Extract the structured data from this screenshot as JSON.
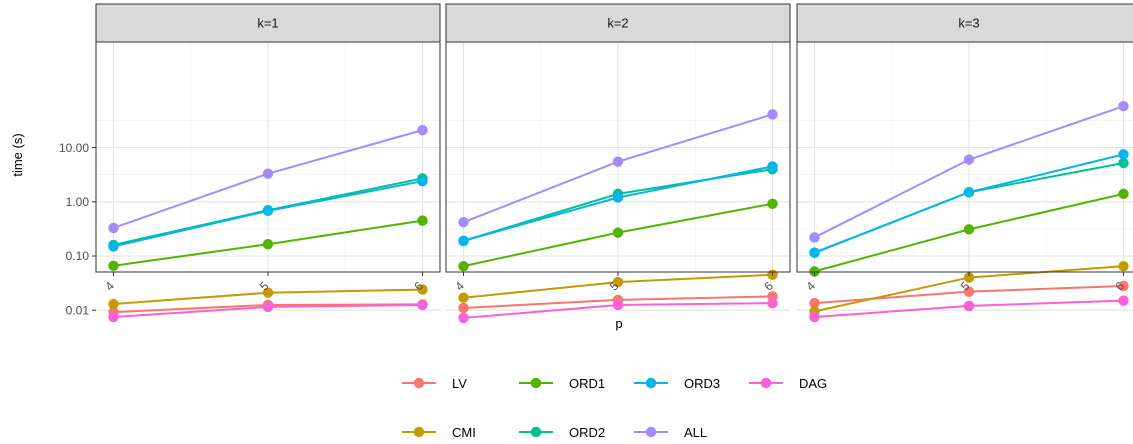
{
  "chart_data": {
    "type": "line",
    "xlabel": "p",
    "ylabel": "time (s)",
    "y_scale": "log10",
    "ylim": [
      0.005,
      80
    ],
    "yticks": [
      0.01,
      0.1,
      1,
      10
    ],
    "ytick_labels": [
      "0.01",
      "0.10",
      "1.00",
      "10.00"
    ],
    "x": [
      4,
      5,
      6
    ],
    "xtick_labels": [
      "4",
      "5",
      "6"
    ],
    "grid": true,
    "legend_position": "bottom",
    "legend_order": [
      "LV",
      "CMI",
      "ORD1",
      "ORD2",
      "ORD3",
      "ALL",
      "DAG"
    ],
    "colors": {
      "LV": "#F8766D",
      "CMI": "#C49A00",
      "ORD1": "#53B400",
      "ORD2": "#00C094",
      "ORD3": "#00B6EB",
      "ALL": "#A58AFF",
      "DAG": "#FB61D7"
    },
    "panels": [
      {
        "strip": "k=1",
        "series": [
          {
            "name": "LV",
            "values": [
              0.0092,
              0.0125,
              0.0128
            ]
          },
          {
            "name": "CMI",
            "values": [
              0.013,
              0.021,
              0.024
            ]
          },
          {
            "name": "ORD1",
            "values": [
              0.066,
              0.165,
              0.45
            ]
          },
          {
            "name": "ORD2",
            "values": [
              0.16,
              0.7,
              2.7
            ]
          },
          {
            "name": "ORD3",
            "values": [
              0.15,
              0.68,
              2.4
            ]
          },
          {
            "name": "ALL",
            "values": [
              0.33,
              3.3,
              21
            ]
          },
          {
            "name": "DAG",
            "values": [
              0.0075,
              0.0115,
              0.0125
            ]
          }
        ]
      },
      {
        "strip": "k=2",
        "series": [
          {
            "name": "LV",
            "values": [
              0.011,
              0.0155,
              0.018
            ]
          },
          {
            "name": "CMI",
            "values": [
              0.017,
              0.033,
              0.045
            ]
          },
          {
            "name": "ORD1",
            "values": [
              0.065,
              0.27,
              0.92
            ]
          },
          {
            "name": "ORD2",
            "values": [
              0.19,
              1.4,
              4.0
            ]
          },
          {
            "name": "ORD3",
            "values": [
              0.19,
              1.2,
              4.5
            ]
          },
          {
            "name": "ALL",
            "values": [
              0.42,
              5.5,
              41
            ]
          },
          {
            "name": "DAG",
            "values": [
              0.0072,
              0.0125,
              0.0135
            ]
          }
        ]
      },
      {
        "strip": "k=3",
        "series": [
          {
            "name": "LV",
            "values": [
              0.0135,
              0.022,
              0.028
            ]
          },
          {
            "name": "CMI",
            "values": [
              0.0095,
              0.04,
              0.065
            ]
          },
          {
            "name": "ORD1",
            "values": [
              0.052,
              0.31,
              1.4
            ]
          },
          {
            "name": "ORD2",
            "values": [
              0.115,
              1.5,
              5.2
            ]
          },
          {
            "name": "ORD3",
            "values": [
              0.115,
              1.5,
              7.5
            ]
          },
          {
            "name": "ALL",
            "values": [
              0.22,
              6.0,
              58
            ]
          },
          {
            "name": "DAG",
            "values": [
              0.0075,
              0.012,
              0.015
            ]
          }
        ]
      }
    ]
  }
}
